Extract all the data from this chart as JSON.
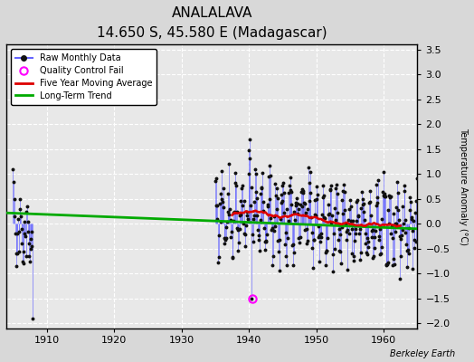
{
  "title": "ANALALAVA",
  "subtitle": "14.650 S, 45.580 E (Madagascar)",
  "ylabel": "Temperature Anomaly (°C)",
  "attribution": "Berkeley Earth",
  "xlim": [
    1904,
    1965
  ],
  "ylim": [
    -2.1,
    3.6
  ],
  "yticks": [
    -2,
    -1.5,
    -1,
    -0.5,
    0,
    0.5,
    1,
    1.5,
    2,
    2.5,
    3,
    3.5
  ],
  "xticks": [
    1910,
    1920,
    1930,
    1940,
    1950,
    1960
  ],
  "fig_facecolor": "#d8d8d8",
  "ax_facecolor": "#e8e8e8",
  "grid_color": "#ffffff",
  "raw_line_color": "#6666ff",
  "raw_marker_color": "#111111",
  "moving_avg_color": "#dd0000",
  "trend_color": "#00aa00",
  "qc_fail_color": "#ff00ff",
  "trend_x": [
    1904,
    1965
  ],
  "trend_y": [
    0.22,
    -0.1
  ],
  "qc_fail_x": 1940.5,
  "qc_fail_y": -1.5
}
